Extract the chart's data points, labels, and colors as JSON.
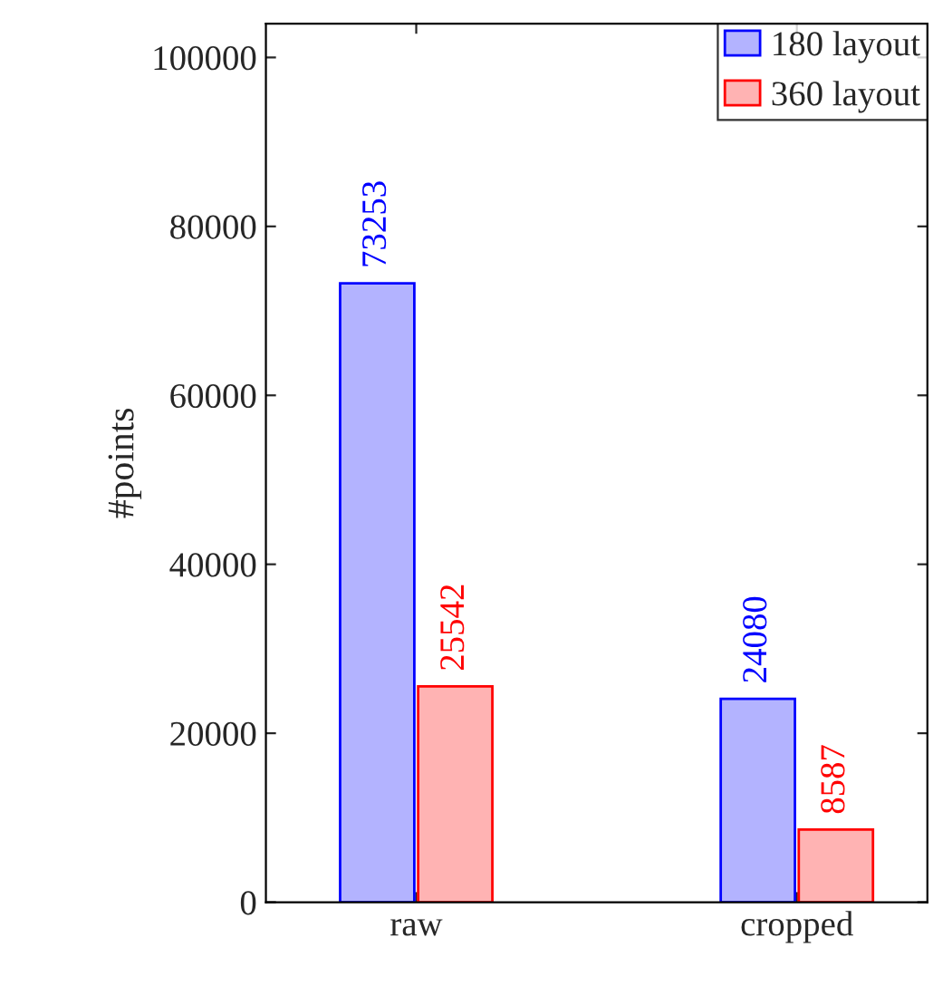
{
  "chart_data": {
    "type": "bar",
    "ylabel": "#points",
    "categories": [
      "raw",
      "cropped"
    ],
    "series": [
      {
        "name": "180 layout",
        "color": "#b3b3ff",
        "values": [
          73253,
          24080
        ]
      },
      {
        "name": "360 layout",
        "color": "#ffb3b3",
        "values": [
          25542,
          8587
        ]
      }
    ],
    "ylim": [
      0,
      104000
    ],
    "yticks": [
      0,
      20000,
      40000,
      60000,
      80000,
      100000
    ],
    "data_labels": true,
    "legend": "top right",
    "grid": false
  }
}
